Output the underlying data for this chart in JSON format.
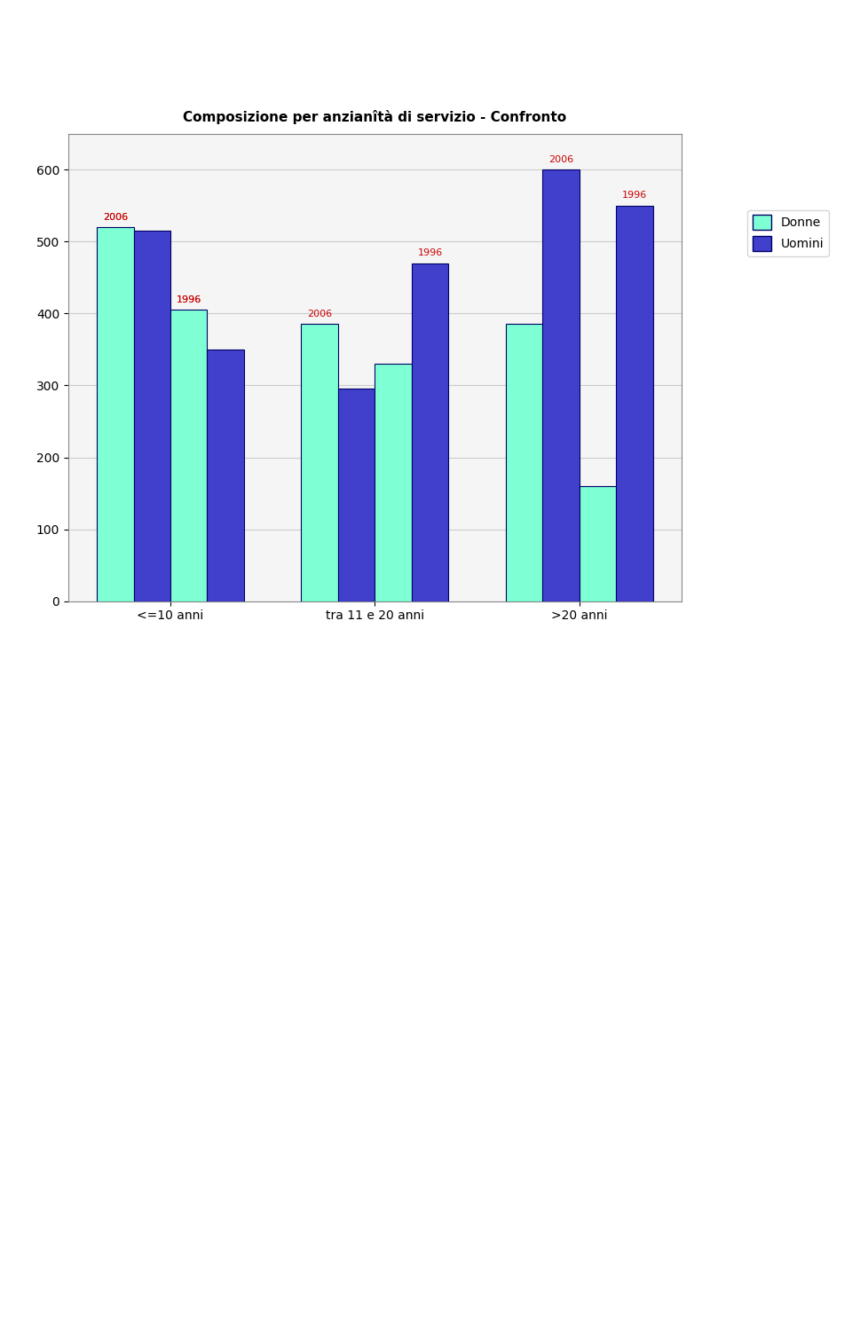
{
  "title": "Composizione per anzianîtà di servizio - Confronto",
  "categories": [
    "<=10 anni",
    "tra 11 e 20 anni",
    ">20 anni"
  ],
  "series": {
    "2006_Donne": [
      520,
      385,
      385
    ],
    "2006_Uomini": [
      515,
      295,
      600
    ],
    "1996_Donne": [
      405,
      330,
      160
    ],
    "1996_Uomini": [
      350,
      470,
      550
    ]
  },
  "color_donne": "#7FFFD4",
  "color_uomini": "#4040CC",
  "color_donne_light": "#AAEEDD",
  "ylim": [
    0,
    650
  ],
  "yticks": [
    0,
    100,
    200,
    300,
    400,
    500,
    600
  ],
  "legend_donne": "Donne",
  "legend_uomini": "Uomini",
  "label_color": "#CC0000",
  "bar_width": 0.18,
  "fig_width": 9.6,
  "fig_height": 15.06,
  "background_color": "#FFFFFF",
  "chart_bg": "#FFFFFF",
  "grid_color": "#CCCCCC",
  "border_color": "#000080"
}
